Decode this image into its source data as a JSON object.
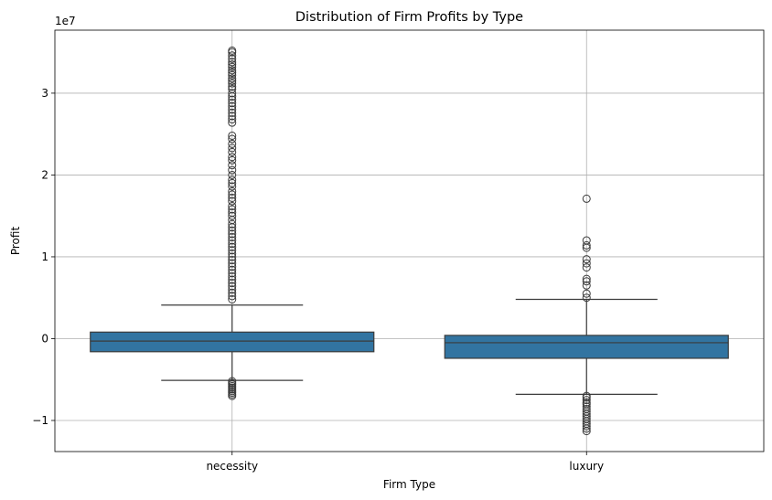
{
  "chart_data": {
    "type": "box",
    "title": "Distribution of Firm Profits by Type",
    "xlabel": "Firm Type",
    "ylabel": "Profit",
    "y_offset_label": "1e7",
    "y_scale": 10000000,
    "ylim": [
      -1.38,
      3.77
    ],
    "y_ticks": [
      -1,
      0,
      1,
      2,
      3
    ],
    "y_tick_labels": [
      "−1",
      "0",
      "1",
      "2",
      "3"
    ],
    "grid": true,
    "box_color": "#3274a1",
    "categories": [
      "necessity",
      "luxury"
    ],
    "series": [
      {
        "category": "necessity",
        "q1": -0.16,
        "median": -0.03,
        "q3": 0.08,
        "whisker_low": -0.51,
        "whisker_high": 0.41,
        "outliers": [
          3.52,
          3.5,
          3.46,
          3.42,
          3.38,
          3.35,
          3.32,
          3.28,
          3.25,
          3.22,
          3.18,
          3.15,
          3.12,
          3.08,
          3.05,
          3.0,
          2.96,
          2.92,
          2.88,
          2.84,
          2.8,
          2.76,
          2.72,
          2.68,
          2.64,
          2.48,
          2.44,
          2.38,
          2.33,
          2.28,
          2.22,
          2.18,
          2.12,
          2.06,
          2.0,
          1.94,
          1.9,
          1.86,
          1.8,
          1.76,
          1.72,
          1.68,
          1.62,
          1.58,
          1.54,
          1.5,
          1.45,
          1.4,
          1.36,
          1.32,
          1.28,
          1.24,
          1.2,
          1.16,
          1.12,
          1.08,
          1.04,
          1.0,
          0.96,
          0.92,
          0.88,
          0.84,
          0.8,
          0.76,
          0.72,
          0.68,
          0.64,
          0.6,
          0.56,
          0.52,
          0.48,
          -0.52,
          -0.54,
          -0.56,
          -0.58,
          -0.6,
          -0.62,
          -0.64,
          -0.66,
          -0.68,
          -0.7
        ]
      },
      {
        "category": "luxury",
        "q1": -0.24,
        "median": -0.05,
        "q3": 0.04,
        "whisker_low": -0.68,
        "whisker_high": 0.48,
        "outliers": [
          1.71,
          1.2,
          1.14,
          1.11,
          0.97,
          0.92,
          0.87,
          0.73,
          0.7,
          0.65,
          0.55,
          0.5,
          -0.7,
          -0.72,
          -0.75,
          -0.78,
          -0.8,
          -0.83,
          -0.86,
          -0.89,
          -0.92,
          -0.95,
          -0.98,
          -1.01,
          -1.04,
          -1.07,
          -1.1,
          -1.13
        ]
      }
    ]
  }
}
